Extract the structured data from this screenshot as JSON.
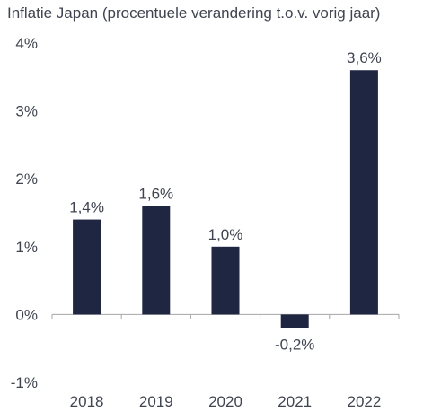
{
  "chart_data": {
    "type": "bar",
    "title": "Inflatie Japan (procentuele verandering t.o.v. vorig jaar)",
    "categories": [
      "2018",
      "2019",
      "2020",
      "2021",
      "2022"
    ],
    "values": [
      1.4,
      1.6,
      1.0,
      -0.2,
      3.6
    ],
    "data_labels": [
      "1,4%",
      "1,6%",
      "1,0%",
      "-0,2%",
      "3,6%"
    ],
    "xlabel": "",
    "ylabel": "",
    "ylim": [
      -1,
      4
    ],
    "y_ticks": [
      4,
      3,
      2,
      1,
      0,
      -1
    ],
    "y_tick_labels": [
      "4%",
      "3%",
      "2%",
      "1%",
      "0%",
      "-1%"
    ],
    "grid": false,
    "legend": "none",
    "bar_color": "#1e2642",
    "axis_color": "#a6a6a6",
    "text_color": "#3f4450"
  }
}
